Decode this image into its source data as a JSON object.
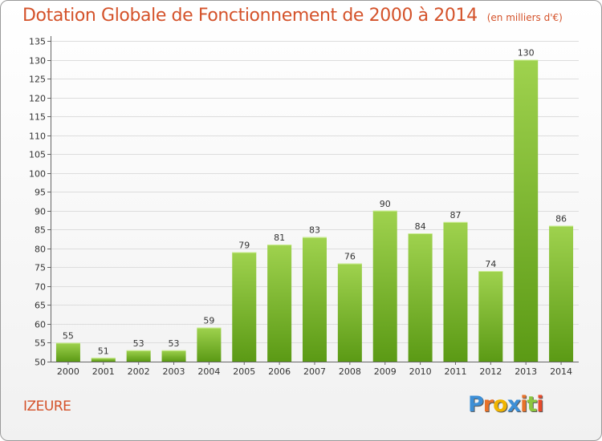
{
  "header": {
    "title": "Dotation Globale de Fonctionnement de 2000 à 2014",
    "subtitle": "(en milliers d'€)"
  },
  "commune": "IZEURE",
  "logo": {
    "letters": [
      "P",
      "r",
      "o",
      "x",
      "i",
      "t",
      "i"
    ],
    "colors": [
      "#3d8fd6",
      "#e8722a",
      "#f0b400",
      "#3d8fd6",
      "#e8722a",
      "#8cc63f",
      "#e84a2a"
    ]
  },
  "chart_data": {
    "type": "bar",
    "title": "Dotation Globale de Fonctionnement de 2000 à 2014",
    "subtitle": "(en milliers d'€)",
    "xlabel": "",
    "ylabel": "",
    "categories": [
      "2000",
      "2001",
      "2002",
      "2003",
      "2004",
      "2005",
      "2006",
      "2007",
      "2008",
      "2009",
      "2010",
      "2011",
      "2012",
      "2013",
      "2014"
    ],
    "values": [
      55,
      51,
      53,
      53,
      59,
      79,
      81,
      83,
      76,
      90,
      84,
      87,
      74,
      130,
      86
    ],
    "ylim": [
      50,
      135
    ],
    "yticks": [
      50,
      55,
      60,
      65,
      70,
      75,
      80,
      85,
      90,
      95,
      100,
      105,
      110,
      115,
      120,
      125,
      130,
      135
    ],
    "grid": "horizontal",
    "legend": "none",
    "bar_color_top": "#9fd24e",
    "bar_color_bottom": "#5b9a15"
  }
}
